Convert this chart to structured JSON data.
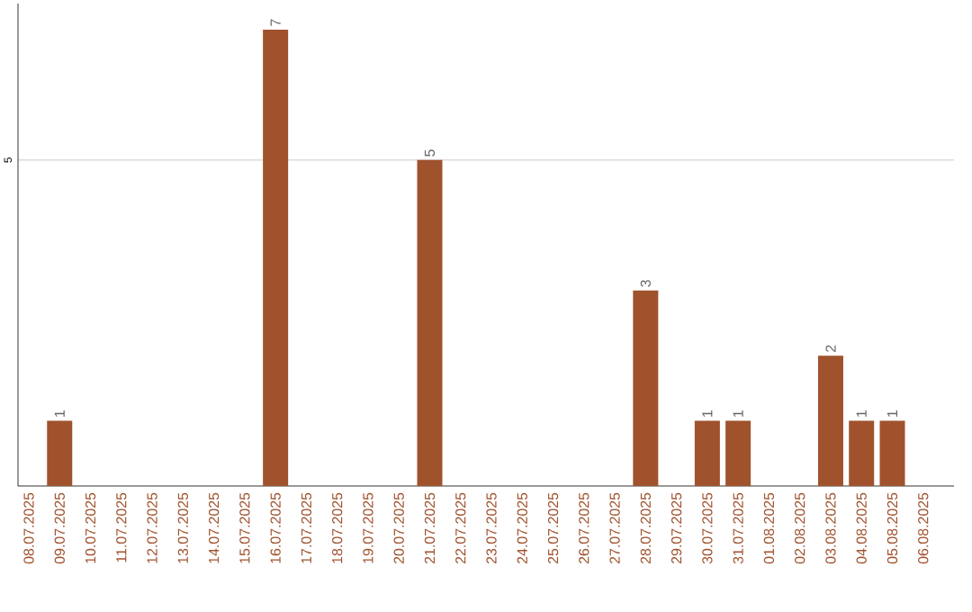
{
  "chart_data": {
    "type": "bar",
    "categories": [
      "08.07.2025",
      "09.07.2025",
      "10.07.2025",
      "11.07.2025",
      "12.07.2025",
      "13.07.2025",
      "14.07.2025",
      "15.07.2025",
      "16.07.2025",
      "17.07.2025",
      "18.07.2025",
      "19.07.2025",
      "20.07.2025",
      "21.07.2025",
      "22.07.2025",
      "23.07.2025",
      "24.07.2025",
      "25.07.2025",
      "26.07.2025",
      "27.07.2025",
      "28.07.2025",
      "29.07.2025",
      "30.07.2025",
      "31.07.2025",
      "01.08.2025",
      "02.08.2025",
      "03.08.2025",
      "04.08.2025",
      "05.08.2025",
      "06.08.2025"
    ],
    "values": [
      0,
      1,
      0,
      0,
      0,
      0,
      0,
      0,
      7,
      0,
      0,
      0,
      0,
      5,
      0,
      0,
      0,
      0,
      0,
      0,
      3,
      0,
      1,
      1,
      0,
      0,
      2,
      1,
      1,
      0
    ],
    "value_labels": [
      null,
      "1",
      null,
      null,
      null,
      null,
      null,
      null,
      "7",
      null,
      null,
      null,
      null,
      "5",
      null,
      null,
      null,
      null,
      null,
      null,
      "3",
      null,
      "1",
      "1",
      null,
      null,
      "2",
      "1",
      "1",
      null
    ],
    "color": "#a0522d",
    "ylim": [
      0,
      7.4
    ],
    "yticks": [
      5
    ],
    "grid": "y"
  }
}
